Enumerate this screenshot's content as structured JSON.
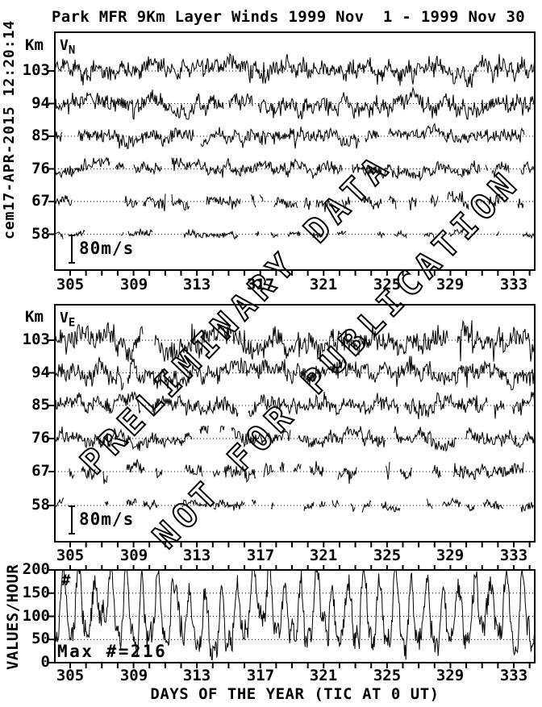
{
  "figure": {
    "title": "Park MFR 9Km Layer Winds 1999 Nov  1 - 1999 Nov 30",
    "timestamp": "cem17-APR-2015 12:20:14",
    "watermark": {
      "line1": "PRELIMINARY DATA",
      "line2": "NOT FOR PUBLICATION"
    },
    "colors": {
      "foreground": "#000000",
      "background": "#ffffff"
    }
  },
  "axes": {
    "x": {
      "title": "DAYS OF THE YEAR (TIC AT 0 UT)",
      "range_days": [
        304.0,
        334.3
      ],
      "tick_every_days": 1,
      "labeled_ticks": [
        305,
        309,
        313,
        317,
        321,
        325,
        329,
        333
      ]
    },
    "altitude": {
      "unit_label": "Km",
      "ticks_km": [
        103,
        94,
        85,
        76,
        67,
        58
      ]
    },
    "rate": {
      "label": "VALUES/HOUR",
      "ticks": [
        200,
        150,
        100,
        50,
        0
      ],
      "gridlines": [
        150,
        100,
        50
      ],
      "ylim": [
        0,
        200
      ]
    }
  },
  "chart_data": [
    {
      "id": "v_north",
      "type": "line",
      "panel_label": "V",
      "panel_label_sub": "N",
      "description": "Northward wind fluctuations per altitude layer, noisy traces about dotted zero lines",
      "scale_bar": {
        "label": "80m/s",
        "value_ms": 80
      },
      "x_days": [
        304.0,
        334.3
      ],
      "series": [
        {
          "altitude_km": 103,
          "amplitude_ms": 26,
          "data_coverage": 0.98
        },
        {
          "altitude_km": 94,
          "amplitude_ms": 24,
          "data_coverage": 0.97
        },
        {
          "altitude_km": 85,
          "amplitude_ms": 19,
          "data_coverage": 0.94
        },
        {
          "altitude_km": 76,
          "amplitude_ms": 17,
          "data_coverage": 0.9
        },
        {
          "altitude_km": 67,
          "amplitude_ms": 16,
          "data_coverage": 0.62
        },
        {
          "altitude_km": 58,
          "amplitude_ms": 9,
          "data_coverage": 0.38
        }
      ]
    },
    {
      "id": "v_east",
      "type": "line",
      "panel_label": "V",
      "panel_label_sub": "E",
      "description": "Eastward wind fluctuations per altitude layer, noisy traces about dotted zero lines",
      "scale_bar": {
        "label": "80m/s",
        "value_ms": 80
      },
      "x_days": [
        304.0,
        334.3
      ],
      "series": [
        {
          "altitude_km": 103,
          "amplitude_ms": 33,
          "data_coverage": 0.99
        },
        {
          "altitude_km": 94,
          "amplitude_ms": 26,
          "data_coverage": 0.98
        },
        {
          "altitude_km": 85,
          "amplitude_ms": 21,
          "data_coverage": 0.95
        },
        {
          "altitude_km": 76,
          "amplitude_ms": 19,
          "data_coverage": 0.86
        },
        {
          "altitude_km": 67,
          "amplitude_ms": 19,
          "data_coverage": 0.6
        },
        {
          "altitude_km": 58,
          "amplitude_ms": 11,
          "data_coverage": 0.42
        }
      ]
    },
    {
      "id": "values_per_hour",
      "type": "line",
      "corner_symbol": "#",
      "annotation": "Max #=216",
      "max_value": 216,
      "ylim": [
        0,
        200
      ],
      "typical_range": [
        10,
        200
      ],
      "pattern": "quasi-diurnal oscillation of hourly measurement counts, days 305-334"
    }
  ]
}
